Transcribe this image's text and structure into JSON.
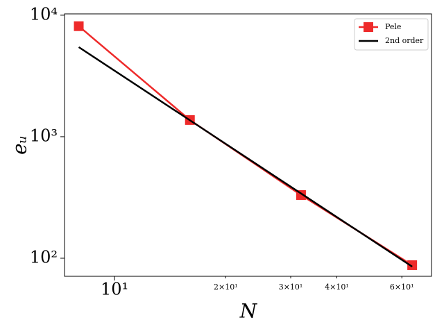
{
  "chart_data": {
    "type": "line",
    "log_x": true,
    "log_y": true,
    "x_label": "N",
    "y_label": "eᵤ",
    "x": [
      8,
      16,
      32,
      64
    ],
    "series": [
      {
        "name": "Pele",
        "color": "#ee2a2a",
        "marker": "square",
        "values": [
          8120,
          1372,
          331,
          87.7
        ]
      },
      {
        "name": "2nd order",
        "color": "#000000",
        "marker": "none",
        "values": [
          5460,
          1365,
          341,
          85.3
        ]
      }
    ],
    "xlim": [
      7.32,
      72.2
    ],
    "ylim": [
      71,
      10250
    ],
    "xticks": [
      {
        "value": 10,
        "label": "10¹"
      },
      {
        "value": 20,
        "label": "2×10¹"
      },
      {
        "value": 30,
        "label": "3×10¹"
      },
      {
        "value": 40,
        "label": "4×10¹"
      },
      {
        "value": 60,
        "label": "6×10¹"
      }
    ],
    "yticks": [
      {
        "value": 100,
        "label": "10²"
      },
      {
        "value": 1000,
        "label": "10³"
      },
      {
        "value": 10000,
        "label": "10⁴"
      }
    ],
    "legend": "upper right"
  }
}
